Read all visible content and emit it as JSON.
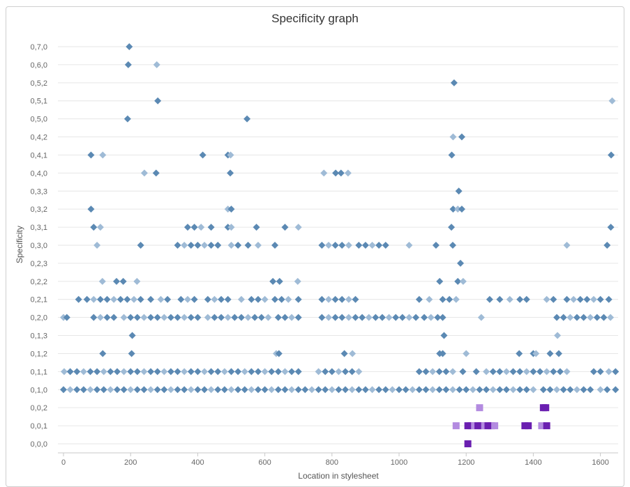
{
  "chart_data": {
    "type": "scatter",
    "title": "Specificity graph",
    "xlabel": "Location in stylesheet",
    "ylabel": "Specificity",
    "xlim": [
      0,
      1650
    ],
    "x_ticks": [
      0,
      200,
      400,
      600,
      800,
      1000,
      1200,
      1400,
      1600
    ],
    "y_categories": [
      "0,0,0",
      "0,0,1",
      "0,0,2",
      "0,1,0",
      "0,1,1",
      "0,1,2",
      "0,1,3",
      "0,2,0",
      "0,2,1",
      "0,2,2",
      "0,2,3",
      "0,3,0",
      "0,3,1",
      "0,3,2",
      "0,3,3",
      "0,4,0",
      "0,4,1",
      "0,4,2",
      "0,5,0",
      "0,5,1",
      "0,5,2",
      "0,6,0",
      "0,7,0"
    ],
    "grid": true,
    "legend": "none",
    "colors": {
      "dark": "#5b89b3",
      "light": "#9fbbd6",
      "purple_dark": "#6a1fb0",
      "purple_light": "#b38be0",
      "grid": "#e6e6e6",
      "axis": "#c8c8c8"
    },
    "series": [
      {
        "marker": "diamond",
        "points": [
          [
            "0,7,0",
            [
              196
            ]
          ],
          [
            "0,6,0",
            [
              193,
              278
            ]
          ],
          [
            "0,5,2",
            [
              1164
            ]
          ],
          [
            "0,5,1",
            [
              281,
              1635
            ]
          ],
          [
            "0,5,0",
            [
              191,
              547
            ]
          ],
          [
            "0,4,2",
            [
              1161,
              1187
            ]
          ],
          [
            "0,4,1",
            [
              82,
              117,
              415,
              490,
              498,
              1157,
              1632
            ]
          ],
          [
            "0,4,0",
            [
              241,
              276,
              497,
              776,
              811,
              827,
              848
            ]
          ],
          [
            "0,3,3",
            [
              1178
            ]
          ],
          [
            "0,3,2",
            [
              82,
              490,
              500,
              1161,
              1175,
              1187
            ]
          ],
          [
            "0,3,1",
            [
              90,
              110,
              370,
              390,
              410,
              440,
              490,
              500,
              575,
              660,
              700,
              1156,
              1631
            ]
          ],
          [
            "0,3,0",
            [
              100,
              230,
              340,
              360,
              380,
              400,
              420,
              440,
              460,
              500,
              520,
              550,
              580,
              630,
              770,
              790,
              810,
              830,
              850,
              880,
              900,
              920,
              940,
              960,
              1030,
              1110,
              1160,
              1500,
              1620
            ]
          ],
          [
            "0,2,3",
            [
              1183
            ]
          ],
          [
            "0,2,2",
            [
              116,
              158,
              178,
              219,
              624,
              644,
              698,
              1121,
              1175,
              1191
            ]
          ],
          [
            "0,2,1",
            [
              45,
              70,
              90,
              110,
              130,
              150,
              170,
              190,
              210,
              230,
              260,
              290,
              310,
              350,
              370,
              390,
              430,
              450,
              470,
              490,
              530,
              560,
              580,
              600,
              630,
              650,
              670,
              700,
              770,
              790,
              810,
              830,
              850,
              870,
              1060,
              1090,
              1130,
              1150,
              1170,
              1270,
              1300,
              1330,
              1360,
              1380,
              1440,
              1460,
              1500,
              1520,
              1540,
              1560,
              1580,
              1600,
              1625
            ]
          ],
          [
            "0,2,0",
            [
              0,
              10,
              90,
              110,
              130,
              150,
              180,
              200,
              220,
              240,
              260,
              280,
              300,
              320,
              340,
              360,
              380,
              400,
              430,
              450,
              470,
              490,
              510,
              530,
              550,
              570,
              590,
              610,
              640,
              660,
              680,
              700,
              770,
              790,
              810,
              830,
              850,
              870,
              890,
              910,
              930,
              950,
              970,
              990,
              1010,
              1030,
              1050,
              1075,
              1095,
              1115,
              1130,
              1245,
              1470,
              1490,
              1510,
              1530,
              1550,
              1570,
              1590,
              1610,
              1630
            ]
          ],
          [
            "0,1,3",
            [
              205,
              1134,
              1472
            ]
          ],
          [
            "0,1,2",
            [
              117,
              203,
              634,
              642,
              837,
              861,
              1121,
              1130,
              1200,
              1358,
              1400,
              1408,
              1450,
              1476
            ]
          ],
          [
            "0,1,1",
            [
              2,
              20,
              40,
              60,
              80,
              100,
              120,
              140,
              160,
              180,
              200,
              220,
              240,
              260,
              280,
              300,
              320,
              340,
              360,
              380,
              400,
              420,
              440,
              460,
              480,
              500,
              520,
              540,
              560,
              580,
              600,
              620,
              640,
              660,
              680,
              700,
              760,
              780,
              800,
              820,
              840,
              860,
              880,
              1060,
              1080,
              1100,
              1120,
              1140,
              1160,
              1190,
              1230,
              1260,
              1280,
              1300,
              1320,
              1340,
              1360,
              1380,
              1400,
              1420,
              1440,
              1460,
              1480,
              1500,
              1580,
              1600,
              1625,
              1645
            ]
          ],
          [
            "0,1,0",
            [
              0,
              20,
              40,
              60,
              80,
              100,
              120,
              140,
              160,
              180,
              200,
              220,
              240,
              260,
              280,
              300,
              320,
              340,
              360,
              380,
              400,
              420,
              440,
              460,
              480,
              500,
              520,
              540,
              560,
              580,
              600,
              620,
              640,
              660,
              680,
              700,
              720,
              740,
              760,
              780,
              800,
              820,
              840,
              860,
              880,
              900,
              920,
              940,
              960,
              980,
              1000,
              1020,
              1040,
              1060,
              1080,
              1100,
              1120,
              1140,
              1160,
              1180,
              1200,
              1220,
              1240,
              1260,
              1280,
              1300,
              1320,
              1340,
              1360,
              1380,
              1400,
              1430,
              1450,
              1470,
              1490,
              1510,
              1530,
              1550,
              1570,
              1600,
              1620,
              1645
            ]
          ]
        ]
      },
      {
        "marker": "square",
        "points": [
          [
            "0,0,2",
            [
              1240,
              1430,
              1437
            ]
          ],
          [
            "0,0,1",
            [
              1170,
              1205,
              1215,
              1225,
              1235,
              1245,
              1255,
              1265,
              1275,
              1285,
              1375,
              1385,
              1425,
              1440
            ]
          ],
          [
            "0,0,0",
            [
              1205
            ]
          ]
        ]
      }
    ]
  }
}
